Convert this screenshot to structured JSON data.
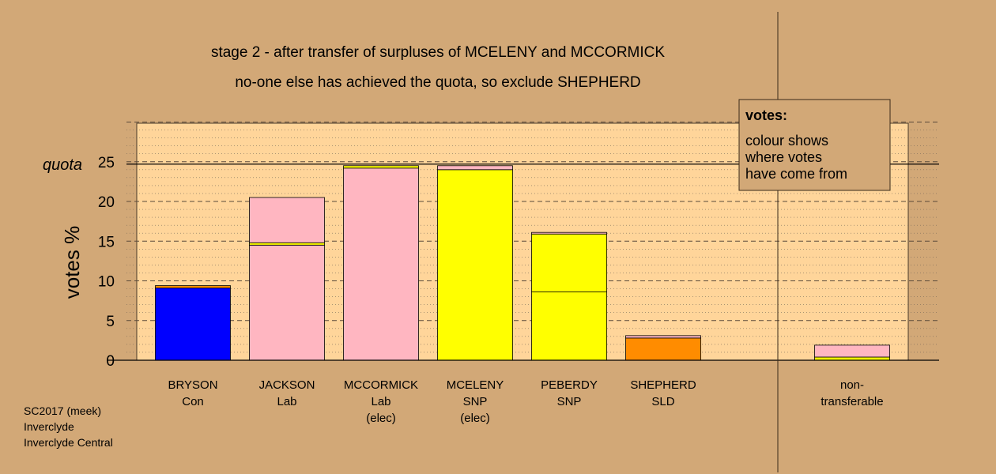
{
  "chart_data": {
    "type": "bar",
    "title": "stage 2 - after transfer of surpluses of MCELENY and MCCORMICK",
    "subtitle": "no-one else has achieved the quota, so exclude SHEPHERD",
    "ylabel": "votes %",
    "ylim": [
      0,
      30
    ],
    "yticks": [
      0,
      5,
      10,
      15,
      20,
      25
    ],
    "quota_label": "quota",
    "quota": 24.7,
    "legend": {
      "heading": "votes:",
      "lines": [
        "colour shows",
        "where votes",
        "have come from"
      ]
    },
    "bars": [
      {
        "name": "BRYSON",
        "party": "Con",
        "note": "",
        "segments": [
          {
            "value": 9.1,
            "color": "#0000ff"
          },
          {
            "value": 0.3,
            "color": "#ff8c00"
          }
        ]
      },
      {
        "name": "JACKSON",
        "party": "Lab",
        "note": "",
        "segments": [
          {
            "value": 14.5,
            "color": "#ffb6c1"
          },
          {
            "value": 0.3,
            "color": "#ffff00"
          },
          {
            "value": 5.7,
            "color": "#ffb6c1"
          }
        ]
      },
      {
        "name": "MCCORMICK",
        "party": "Lab",
        "note": "(elec)",
        "segments": [
          {
            "value": 24.2,
            "color": "#ffb6c1"
          },
          {
            "value": 0.3,
            "color": "#ffff00"
          }
        ]
      },
      {
        "name": "MCELENY",
        "party": "SNP",
        "note": "(elec)",
        "segments": [
          {
            "value": 24.0,
            "color": "#ffff00"
          },
          {
            "value": 0.5,
            "color": "#ffb6c1"
          }
        ]
      },
      {
        "name": "PEBERDY",
        "party": "SNP",
        "note": "",
        "segments": [
          {
            "value": 8.6,
            "color": "#ffff00"
          },
          {
            "value": 7.3,
            "color": "#ffff00"
          },
          {
            "value": 0.2,
            "color": "#ffb6c1"
          }
        ]
      },
      {
        "name": "SHEPHERD",
        "party": "SLD",
        "note": "",
        "segments": [
          {
            "value": 2.8,
            "color": "#ff8c00"
          },
          {
            "value": 0.3,
            "color": "#ffb6c1"
          }
        ]
      },
      {
        "name": "non-",
        "party": "transferable",
        "note": "",
        "segments": [
          {
            "value": 0.4,
            "color": "#ffff00"
          },
          {
            "value": 1.5,
            "color": "#ffb6c1"
          }
        ]
      }
    ]
  },
  "footer": {
    "line1": "SC2017 (meek)",
    "line2": "Inverclyde",
    "line3": "Inverclyde Central"
  }
}
